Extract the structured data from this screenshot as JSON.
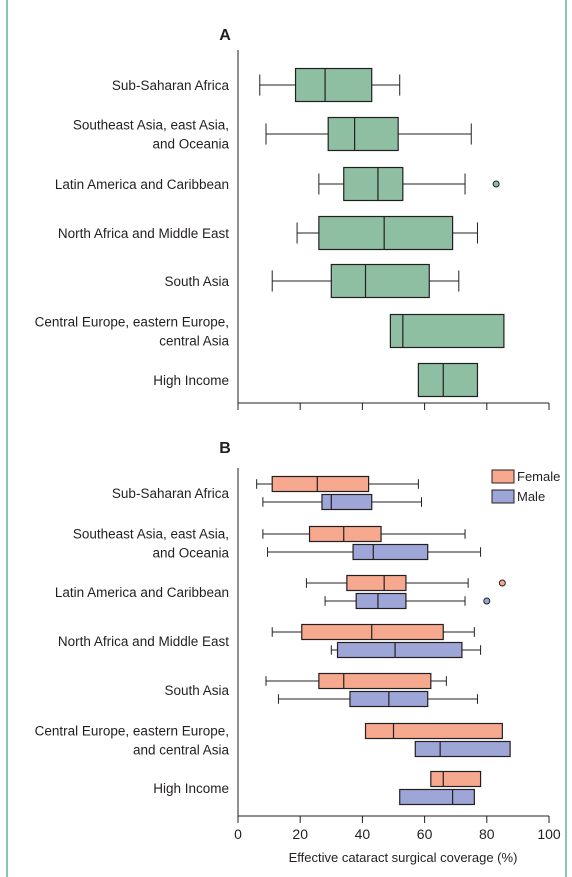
{
  "colors": {
    "frame": "#0e8a7a",
    "panel_a_box": "#8fbfa2",
    "female": "#f7a98f",
    "male": "#9ea6d8",
    "line": "#231f20"
  },
  "chart_data": [
    {
      "type": "boxplot",
      "panel_label": "A",
      "orientation": "horizontal",
      "categories": [
        "Sub-Saharan Africa",
        "Southeast Asia, east Asia, and Oceania",
        "Latin America and Caribbean",
        "North Africa and Middle East",
        "South Asia",
        "Central Europe, eastern Europe, central Asia",
        "High Income"
      ],
      "category_lines": [
        [
          "Sub-Saharan Africa"
        ],
        [
          "Southeast Asia, east Asia,",
          "and Oceania"
        ],
        [
          "Latin America and Caribbean"
        ],
        [
          "North Africa and Middle East"
        ],
        [
          "South Asia"
        ],
        [
          "Central Europe, eastern Europe,",
          "central Asia"
        ],
        [
          "High Income"
        ]
      ],
      "boxes": [
        {
          "whisker_low": 7,
          "q1": 18.5,
          "median": 28,
          "q3": 43,
          "whisker_high": 52
        },
        {
          "whisker_low": 9,
          "q1": 29,
          "median": 37.5,
          "q3": 51.5,
          "whisker_high": 75
        },
        {
          "whisker_low": 26,
          "q1": 34,
          "median": 45,
          "q3": 53,
          "whisker_high": 73,
          "outliers": [
            83
          ]
        },
        {
          "whisker_low": 19,
          "q1": 26,
          "median": 47,
          "q3": 69,
          "whisker_high": 77
        },
        {
          "whisker_low": 11,
          "q1": 30,
          "median": 41,
          "q3": 61.5,
          "whisker_high": 71
        },
        {
          "whisker_low": null,
          "q1": 49,
          "median": 53,
          "q3": 85.5,
          "whisker_high": null
        },
        {
          "whisker_low": null,
          "q1": 58,
          "median": 66,
          "q3": 77,
          "whisker_high": null
        }
      ],
      "xlim": [
        0,
        100
      ],
      "xticks": [
        0,
        20,
        40,
        60,
        80,
        100
      ],
      "show_tick_labels": false
    },
    {
      "type": "boxplot",
      "panel_label": "B",
      "orientation": "horizontal",
      "categories": [
        "Sub-Saharan Africa",
        "Southeast Asia, east Asia, and Oceania",
        "Latin America and Caribbean",
        "North Africa and Middle East",
        "South Asia",
        "Central Europe, eastern Europe, and central Asia",
        "High Income"
      ],
      "category_lines": [
        [
          "Sub-Saharan Africa"
        ],
        [
          "Southeast Asia, east Asia,",
          "and Oceania"
        ],
        [
          "Latin America and Caribbean"
        ],
        [
          "North Africa and Middle East"
        ],
        [
          "South Asia"
        ],
        [
          "Central Europe, eastern Europe,",
          "and central Asia"
        ],
        [
          "High Income"
        ]
      ],
      "series": [
        {
          "name": "Female",
          "boxes": [
            {
              "whisker_low": 6,
              "q1": 11,
              "median": 25.5,
              "q3": 42,
              "whisker_high": 58
            },
            {
              "whisker_low": 8,
              "q1": 23,
              "median": 34,
              "q3": 46,
              "whisker_high": 73
            },
            {
              "whisker_low": 22,
              "q1": 35,
              "median": 47,
              "q3": 54,
              "whisker_high": 74,
              "outliers": [
                85
              ]
            },
            {
              "whisker_low": 11,
              "q1": 20.5,
              "median": 43,
              "q3": 66,
              "whisker_high": 76
            },
            {
              "whisker_low": 9,
              "q1": 26,
              "median": 34,
              "q3": 62,
              "whisker_high": 67
            },
            {
              "whisker_low": null,
              "q1": 41,
              "median": 50,
              "q3": 85,
              "whisker_high": null
            },
            {
              "whisker_low": null,
              "q1": 62,
              "median": 66,
              "q3": 78,
              "whisker_high": null
            }
          ]
        },
        {
          "name": "Male",
          "boxes": [
            {
              "whisker_low": 8,
              "q1": 27,
              "median": 30,
              "q3": 43,
              "whisker_high": 59
            },
            {
              "whisker_low": 9.5,
              "q1": 37,
              "median": 43.5,
              "q3": 61,
              "whisker_high": 78
            },
            {
              "whisker_low": 28,
              "q1": 38,
              "median": 45,
              "q3": 54,
              "whisker_high": 73,
              "outliers": [
                80
              ]
            },
            {
              "whisker_low": 30,
              "q1": 32,
              "median": 50.5,
              "q3": 72,
              "whisker_high": 78
            },
            {
              "whisker_low": 13,
              "q1": 36,
              "median": 48.5,
              "q3": 61,
              "whisker_high": 77
            },
            {
              "whisker_low": null,
              "q1": 57,
              "median": 65,
              "q3": 87.5,
              "whisker_high": null
            },
            {
              "whisker_low": null,
              "q1": 52,
              "median": 69,
              "q3": 76,
              "whisker_high": null
            }
          ]
        }
      ],
      "xlim": [
        0,
        100
      ],
      "xticks": [
        0,
        20,
        40,
        60,
        80,
        100
      ],
      "xtick_labels": [
        "0",
        "20",
        "40",
        "60",
        "80",
        "100"
      ],
      "xlabel": "Effective cataract surgical coverage (%)",
      "legend": [
        "Female",
        "Male"
      ],
      "legend_position": "top-right"
    }
  ]
}
